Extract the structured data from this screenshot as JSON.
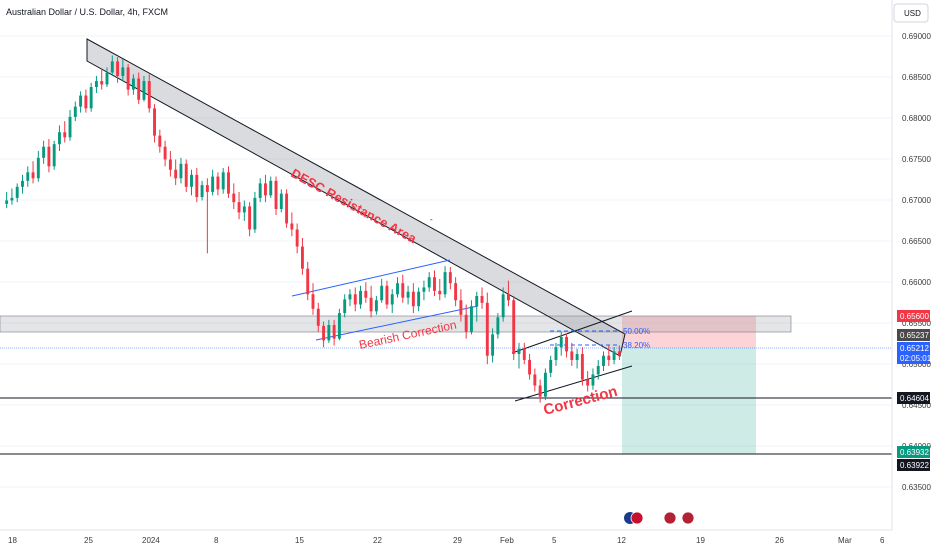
{
  "header": {
    "title": "Australian Dollar / U.S. Dollar, 4h, FXCM",
    "currency": "USD"
  },
  "chart_data": {
    "type": "candlestick",
    "symbol": "AUDUSD",
    "timeframe": "4h",
    "x_ticks": [
      "18",
      "25",
      "2024",
      "8",
      "15",
      "22",
      "29",
      "Feb",
      "5",
      "12",
      "19",
      "26",
      "Mar",
      "6"
    ],
    "y_ticks": [
      "0.69000",
      "0.68500",
      "0.68000",
      "0.67500",
      "0.67000",
      "0.66500",
      "0.66000",
      "0.65500",
      "0.65000",
      "0.64500",
      "0.64000",
      "0.63500"
    ],
    "ylim": [
      0.6325,
      0.693
    ],
    "price_levels": [
      {
        "label": "0.65600",
        "value": 0.656,
        "color": "#f23645"
      },
      {
        "label": "0.65237",
        "value": 0.65237,
        "color": "#4a4a4a"
      },
      {
        "label": "0.65212",
        "sub": "02:05:01",
        "value": 0.65212,
        "color": "#2962ff"
      },
      {
        "label": "0.64604",
        "value": 0.64604,
        "color": "#131722"
      },
      {
        "label": "0.63932",
        "value": 0.63932,
        "color": "#089981"
      },
      {
        "label": "0.63922",
        "value": 0.63922,
        "color": "#131722"
      }
    ],
    "fib_levels": [
      {
        "label": "50.00%",
        "value": 0.6543
      },
      {
        "label": "38.20%",
        "value": 0.6525
      }
    ],
    "annotations": [
      {
        "text": "DESC Resistance Area"
      },
      {
        "text": "Bearish Correction"
      },
      {
        "text": "Correction"
      }
    ],
    "position": {
      "entry": 0.65212,
      "stop": 0.656,
      "target": 0.63932
    },
    "colors": {
      "up": "#089981",
      "down": "#f23645"
    },
    "candles": [
      {
        "o": 0.6698,
        "h": 0.6712,
        "l": 0.6693,
        "c": 0.6702
      },
      {
        "o": 0.6702,
        "h": 0.6716,
        "l": 0.6697,
        "c": 0.6705
      },
      {
        "o": 0.6705,
        "h": 0.6722,
        "l": 0.67,
        "c": 0.6718
      },
      {
        "o": 0.6718,
        "h": 0.6732,
        "l": 0.671,
        "c": 0.6725
      },
      {
        "o": 0.6725,
        "h": 0.6742,
        "l": 0.6718,
        "c": 0.6735
      },
      {
        "o": 0.6735,
        "h": 0.6748,
        "l": 0.6722,
        "c": 0.6728
      },
      {
        "o": 0.6728,
        "h": 0.676,
        "l": 0.6724,
        "c": 0.6752
      },
      {
        "o": 0.6752,
        "h": 0.6772,
        "l": 0.6745,
        "c": 0.6765
      },
      {
        "o": 0.6765,
        "h": 0.6774,
        "l": 0.6735,
        "c": 0.6742
      },
      {
        "o": 0.6742,
        "h": 0.6772,
        "l": 0.6738,
        "c": 0.6768
      },
      {
        "o": 0.6768,
        "h": 0.679,
        "l": 0.676,
        "c": 0.6782
      },
      {
        "o": 0.6782,
        "h": 0.6795,
        "l": 0.677,
        "c": 0.6776
      },
      {
        "o": 0.6776,
        "h": 0.6808,
        "l": 0.6772,
        "c": 0.68
      },
      {
        "o": 0.68,
        "h": 0.6818,
        "l": 0.6795,
        "c": 0.6812
      },
      {
        "o": 0.6812,
        "h": 0.683,
        "l": 0.6805,
        "c": 0.6825
      },
      {
        "o": 0.6825,
        "h": 0.6832,
        "l": 0.6805,
        "c": 0.681
      },
      {
        "o": 0.681,
        "h": 0.684,
        "l": 0.6806,
        "c": 0.6835
      },
      {
        "o": 0.6835,
        "h": 0.6848,
        "l": 0.6828,
        "c": 0.6842
      },
      {
        "o": 0.6842,
        "h": 0.6855,
        "l": 0.6832,
        "c": 0.6838
      },
      {
        "o": 0.6838,
        "h": 0.6858,
        "l": 0.6835,
        "c": 0.6852
      },
      {
        "o": 0.6852,
        "h": 0.6872,
        "l": 0.6848,
        "c": 0.6865
      },
      {
        "o": 0.6865,
        "h": 0.687,
        "l": 0.684,
        "c": 0.6848
      },
      {
        "o": 0.6848,
        "h": 0.6868,
        "l": 0.6842,
        "c": 0.6858
      },
      {
        "o": 0.6858,
        "h": 0.6862,
        "l": 0.6825,
        "c": 0.6832
      },
      {
        "o": 0.6832,
        "h": 0.685,
        "l": 0.6826,
        "c": 0.6845
      },
      {
        "o": 0.6845,
        "h": 0.6852,
        "l": 0.6815,
        "c": 0.682
      },
      {
        "o": 0.682,
        "h": 0.6848,
        "l": 0.6818,
        "c": 0.6842
      },
      {
        "o": 0.6842,
        "h": 0.685,
        "l": 0.6805,
        "c": 0.681
      },
      {
        "o": 0.681,
        "h": 0.6815,
        "l": 0.677,
        "c": 0.6778
      },
      {
        "o": 0.6778,
        "h": 0.6785,
        "l": 0.6758,
        "c": 0.6765
      },
      {
        "o": 0.6765,
        "h": 0.6772,
        "l": 0.6742,
        "c": 0.675
      },
      {
        "o": 0.675,
        "h": 0.676,
        "l": 0.673,
        "c": 0.6738
      },
      {
        "o": 0.6738,
        "h": 0.675,
        "l": 0.672,
        "c": 0.6728
      },
      {
        "o": 0.6728,
        "h": 0.6752,
        "l": 0.6722,
        "c": 0.6745
      },
      {
        "o": 0.6745,
        "h": 0.675,
        "l": 0.6712,
        "c": 0.6718
      },
      {
        "o": 0.6718,
        "h": 0.6738,
        "l": 0.6708,
        "c": 0.6732
      },
      {
        "o": 0.6732,
        "h": 0.674,
        "l": 0.67,
        "c": 0.6706
      },
      {
        "o": 0.6706,
        "h": 0.6725,
        "l": 0.6702,
        "c": 0.672
      },
      {
        "o": 0.672,
        "h": 0.6728,
        "l": 0.664,
        "c": 0.6712
      },
      {
        "o": 0.6712,
        "h": 0.6738,
        "l": 0.6708,
        "c": 0.673
      },
      {
        "o": 0.673,
        "h": 0.6735,
        "l": 0.6708,
        "c": 0.6715
      },
      {
        "o": 0.6715,
        "h": 0.674,
        "l": 0.671,
        "c": 0.6735
      },
      {
        "o": 0.6735,
        "h": 0.6742,
        "l": 0.6705,
        "c": 0.671
      },
      {
        "o": 0.671,
        "h": 0.6722,
        "l": 0.6692,
        "c": 0.67
      },
      {
        "o": 0.67,
        "h": 0.6712,
        "l": 0.668,
        "c": 0.6688
      },
      {
        "o": 0.6688,
        "h": 0.6702,
        "l": 0.6678,
        "c": 0.6695
      },
      {
        "o": 0.6695,
        "h": 0.67,
        "l": 0.666,
        "c": 0.6668
      },
      {
        "o": 0.6668,
        "h": 0.6712,
        "l": 0.6664,
        "c": 0.6705
      },
      {
        "o": 0.6705,
        "h": 0.6728,
        "l": 0.67,
        "c": 0.6722
      },
      {
        "o": 0.6722,
        "h": 0.6732,
        "l": 0.67,
        "c": 0.6708
      },
      {
        "o": 0.6708,
        "h": 0.673,
        "l": 0.6705,
        "c": 0.6725
      },
      {
        "o": 0.6725,
        "h": 0.673,
        "l": 0.6685,
        "c": 0.6692
      },
      {
        "o": 0.6692,
        "h": 0.6715,
        "l": 0.6688,
        "c": 0.671
      },
      {
        "o": 0.671,
        "h": 0.6715,
        "l": 0.667,
        "c": 0.6675
      },
      {
        "o": 0.6675,
        "h": 0.6688,
        "l": 0.666,
        "c": 0.6668
      },
      {
        "o": 0.6668,
        "h": 0.6675,
        "l": 0.664,
        "c": 0.6648
      },
      {
        "o": 0.6648,
        "h": 0.6658,
        "l": 0.6615,
        "c": 0.6622
      },
      {
        "o": 0.6622,
        "h": 0.663,
        "l": 0.6585,
        "c": 0.6592
      },
      {
        "o": 0.6592,
        "h": 0.6605,
        "l": 0.6568,
        "c": 0.6575
      },
      {
        "o": 0.6575,
        "h": 0.6582,
        "l": 0.6548,
        "c": 0.6555
      },
      {
        "o": 0.6555,
        "h": 0.656,
        "l": 0.653,
        "c": 0.6538
      },
      {
        "o": 0.6538,
        "h": 0.6562,
        "l": 0.6535,
        "c": 0.6556
      },
      {
        "o": 0.6556,
        "h": 0.6562,
        "l": 0.6532,
        "c": 0.654
      },
      {
        "o": 0.654,
        "h": 0.6575,
        "l": 0.6538,
        "c": 0.657
      },
      {
        "o": 0.657,
        "h": 0.6592,
        "l": 0.6565,
        "c": 0.6586
      },
      {
        "o": 0.6586,
        "h": 0.6598,
        "l": 0.6578,
        "c": 0.6592
      },
      {
        "o": 0.6592,
        "h": 0.66,
        "l": 0.6572,
        "c": 0.658
      },
      {
        "o": 0.658,
        "h": 0.6602,
        "l": 0.6575,
        "c": 0.6596
      },
      {
        "o": 0.6596,
        "h": 0.6606,
        "l": 0.6582,
        "c": 0.6588
      },
      {
        "o": 0.6588,
        "h": 0.6602,
        "l": 0.6565,
        "c": 0.6572
      },
      {
        "o": 0.6572,
        "h": 0.659,
        "l": 0.6568,
        "c": 0.6585
      },
      {
        "o": 0.6585,
        "h": 0.661,
        "l": 0.6582,
        "c": 0.6602
      },
      {
        "o": 0.6602,
        "h": 0.6608,
        "l": 0.6575,
        "c": 0.658
      },
      {
        "o": 0.658,
        "h": 0.6598,
        "l": 0.657,
        "c": 0.6592
      },
      {
        "o": 0.6592,
        "h": 0.6612,
        "l": 0.6588,
        "c": 0.6605
      },
      {
        "o": 0.6605,
        "h": 0.6615,
        "l": 0.6582,
        "c": 0.6588
      },
      {
        "o": 0.6588,
        "h": 0.6602,
        "l": 0.658,
        "c": 0.6595
      },
      {
        "o": 0.6595,
        "h": 0.6605,
        "l": 0.657,
        "c": 0.6578
      },
      {
        "o": 0.6578,
        "h": 0.66,
        "l": 0.6572,
        "c": 0.6595
      },
      {
        "o": 0.6595,
        "h": 0.6608,
        "l": 0.6585,
        "c": 0.66
      },
      {
        "o": 0.66,
        "h": 0.6618,
        "l": 0.6595,
        "c": 0.6612
      },
      {
        "o": 0.6612,
        "h": 0.662,
        "l": 0.659,
        "c": 0.6596
      },
      {
        "o": 0.6596,
        "h": 0.661,
        "l": 0.6585,
        "c": 0.6592
      },
      {
        "o": 0.6592,
        "h": 0.6625,
        "l": 0.6588,
        "c": 0.6618
      },
      {
        "o": 0.6618,
        "h": 0.6624,
        "l": 0.6598,
        "c": 0.6605
      },
      {
        "o": 0.6605,
        "h": 0.6612,
        "l": 0.6578,
        "c": 0.6585
      },
      {
        "o": 0.6585,
        "h": 0.6598,
        "l": 0.656,
        "c": 0.6568
      },
      {
        "o": 0.6568,
        "h": 0.658,
        "l": 0.654,
        "c": 0.6548
      },
      {
        "o": 0.6548,
        "h": 0.6585,
        "l": 0.6545,
        "c": 0.6578
      },
      {
        "o": 0.6578,
        "h": 0.6595,
        "l": 0.656,
        "c": 0.659
      },
      {
        "o": 0.659,
        "h": 0.66,
        "l": 0.6575,
        "c": 0.6582
      },
      {
        "o": 0.6582,
        "h": 0.6594,
        "l": 0.651,
        "c": 0.652
      },
      {
        "o": 0.652,
        "h": 0.6552,
        "l": 0.6512,
        "c": 0.6545
      },
      {
        "o": 0.6545,
        "h": 0.657,
        "l": 0.654,
        "c": 0.6565
      },
      {
        "o": 0.6565,
        "h": 0.66,
        "l": 0.656,
        "c": 0.6592
      },
      {
        "o": 0.6592,
        "h": 0.6608,
        "l": 0.6578,
        "c": 0.6585
      },
      {
        "o": 0.6585,
        "h": 0.659,
        "l": 0.6515,
        "c": 0.6522
      },
      {
        "o": 0.6522,
        "h": 0.6535,
        "l": 0.6505,
        "c": 0.6528
      },
      {
        "o": 0.6528,
        "h": 0.6535,
        "l": 0.651,
        "c": 0.6515
      },
      {
        "o": 0.6515,
        "h": 0.6522,
        "l": 0.6492,
        "c": 0.6498
      },
      {
        "o": 0.6498,
        "h": 0.6505,
        "l": 0.6478,
        "c": 0.6485
      },
      {
        "o": 0.6485,
        "h": 0.6492,
        "l": 0.6465,
        "c": 0.6472
      },
      {
        "o": 0.6472,
        "h": 0.6505,
        "l": 0.6468,
        "c": 0.65
      },
      {
        "o": 0.65,
        "h": 0.652,
        "l": 0.6495,
        "c": 0.6515
      },
      {
        "o": 0.6515,
        "h": 0.6535,
        "l": 0.6508,
        "c": 0.653
      },
      {
        "o": 0.653,
        "h": 0.6548,
        "l": 0.652,
        "c": 0.6542
      },
      {
        "o": 0.6542,
        "h": 0.6546,
        "l": 0.6518,
        "c": 0.6525
      },
      {
        "o": 0.6525,
        "h": 0.6535,
        "l": 0.6508,
        "c": 0.6515
      },
      {
        "o": 0.6515,
        "h": 0.6528,
        "l": 0.6505,
        "c": 0.6522
      },
      {
        "o": 0.6522,
        "h": 0.653,
        "l": 0.6485,
        "c": 0.6492
      },
      {
        "o": 0.6492,
        "h": 0.6502,
        "l": 0.6478,
        "c": 0.6485
      },
      {
        "o": 0.6485,
        "h": 0.6505,
        "l": 0.648,
        "c": 0.6498
      },
      {
        "o": 0.6498,
        "h": 0.6515,
        "l": 0.6492,
        "c": 0.6508
      },
      {
        "o": 0.6508,
        "h": 0.6525,
        "l": 0.6502,
        "c": 0.652
      },
      {
        "o": 0.652,
        "h": 0.6532,
        "l": 0.6508,
        "c": 0.6515
      },
      {
        "o": 0.6515,
        "h": 0.653,
        "l": 0.651,
        "c": 0.6525
      },
      {
        "o": 0.6525,
        "h": 0.6532,
        "l": 0.6515,
        "c": 0.6521
      }
    ]
  }
}
